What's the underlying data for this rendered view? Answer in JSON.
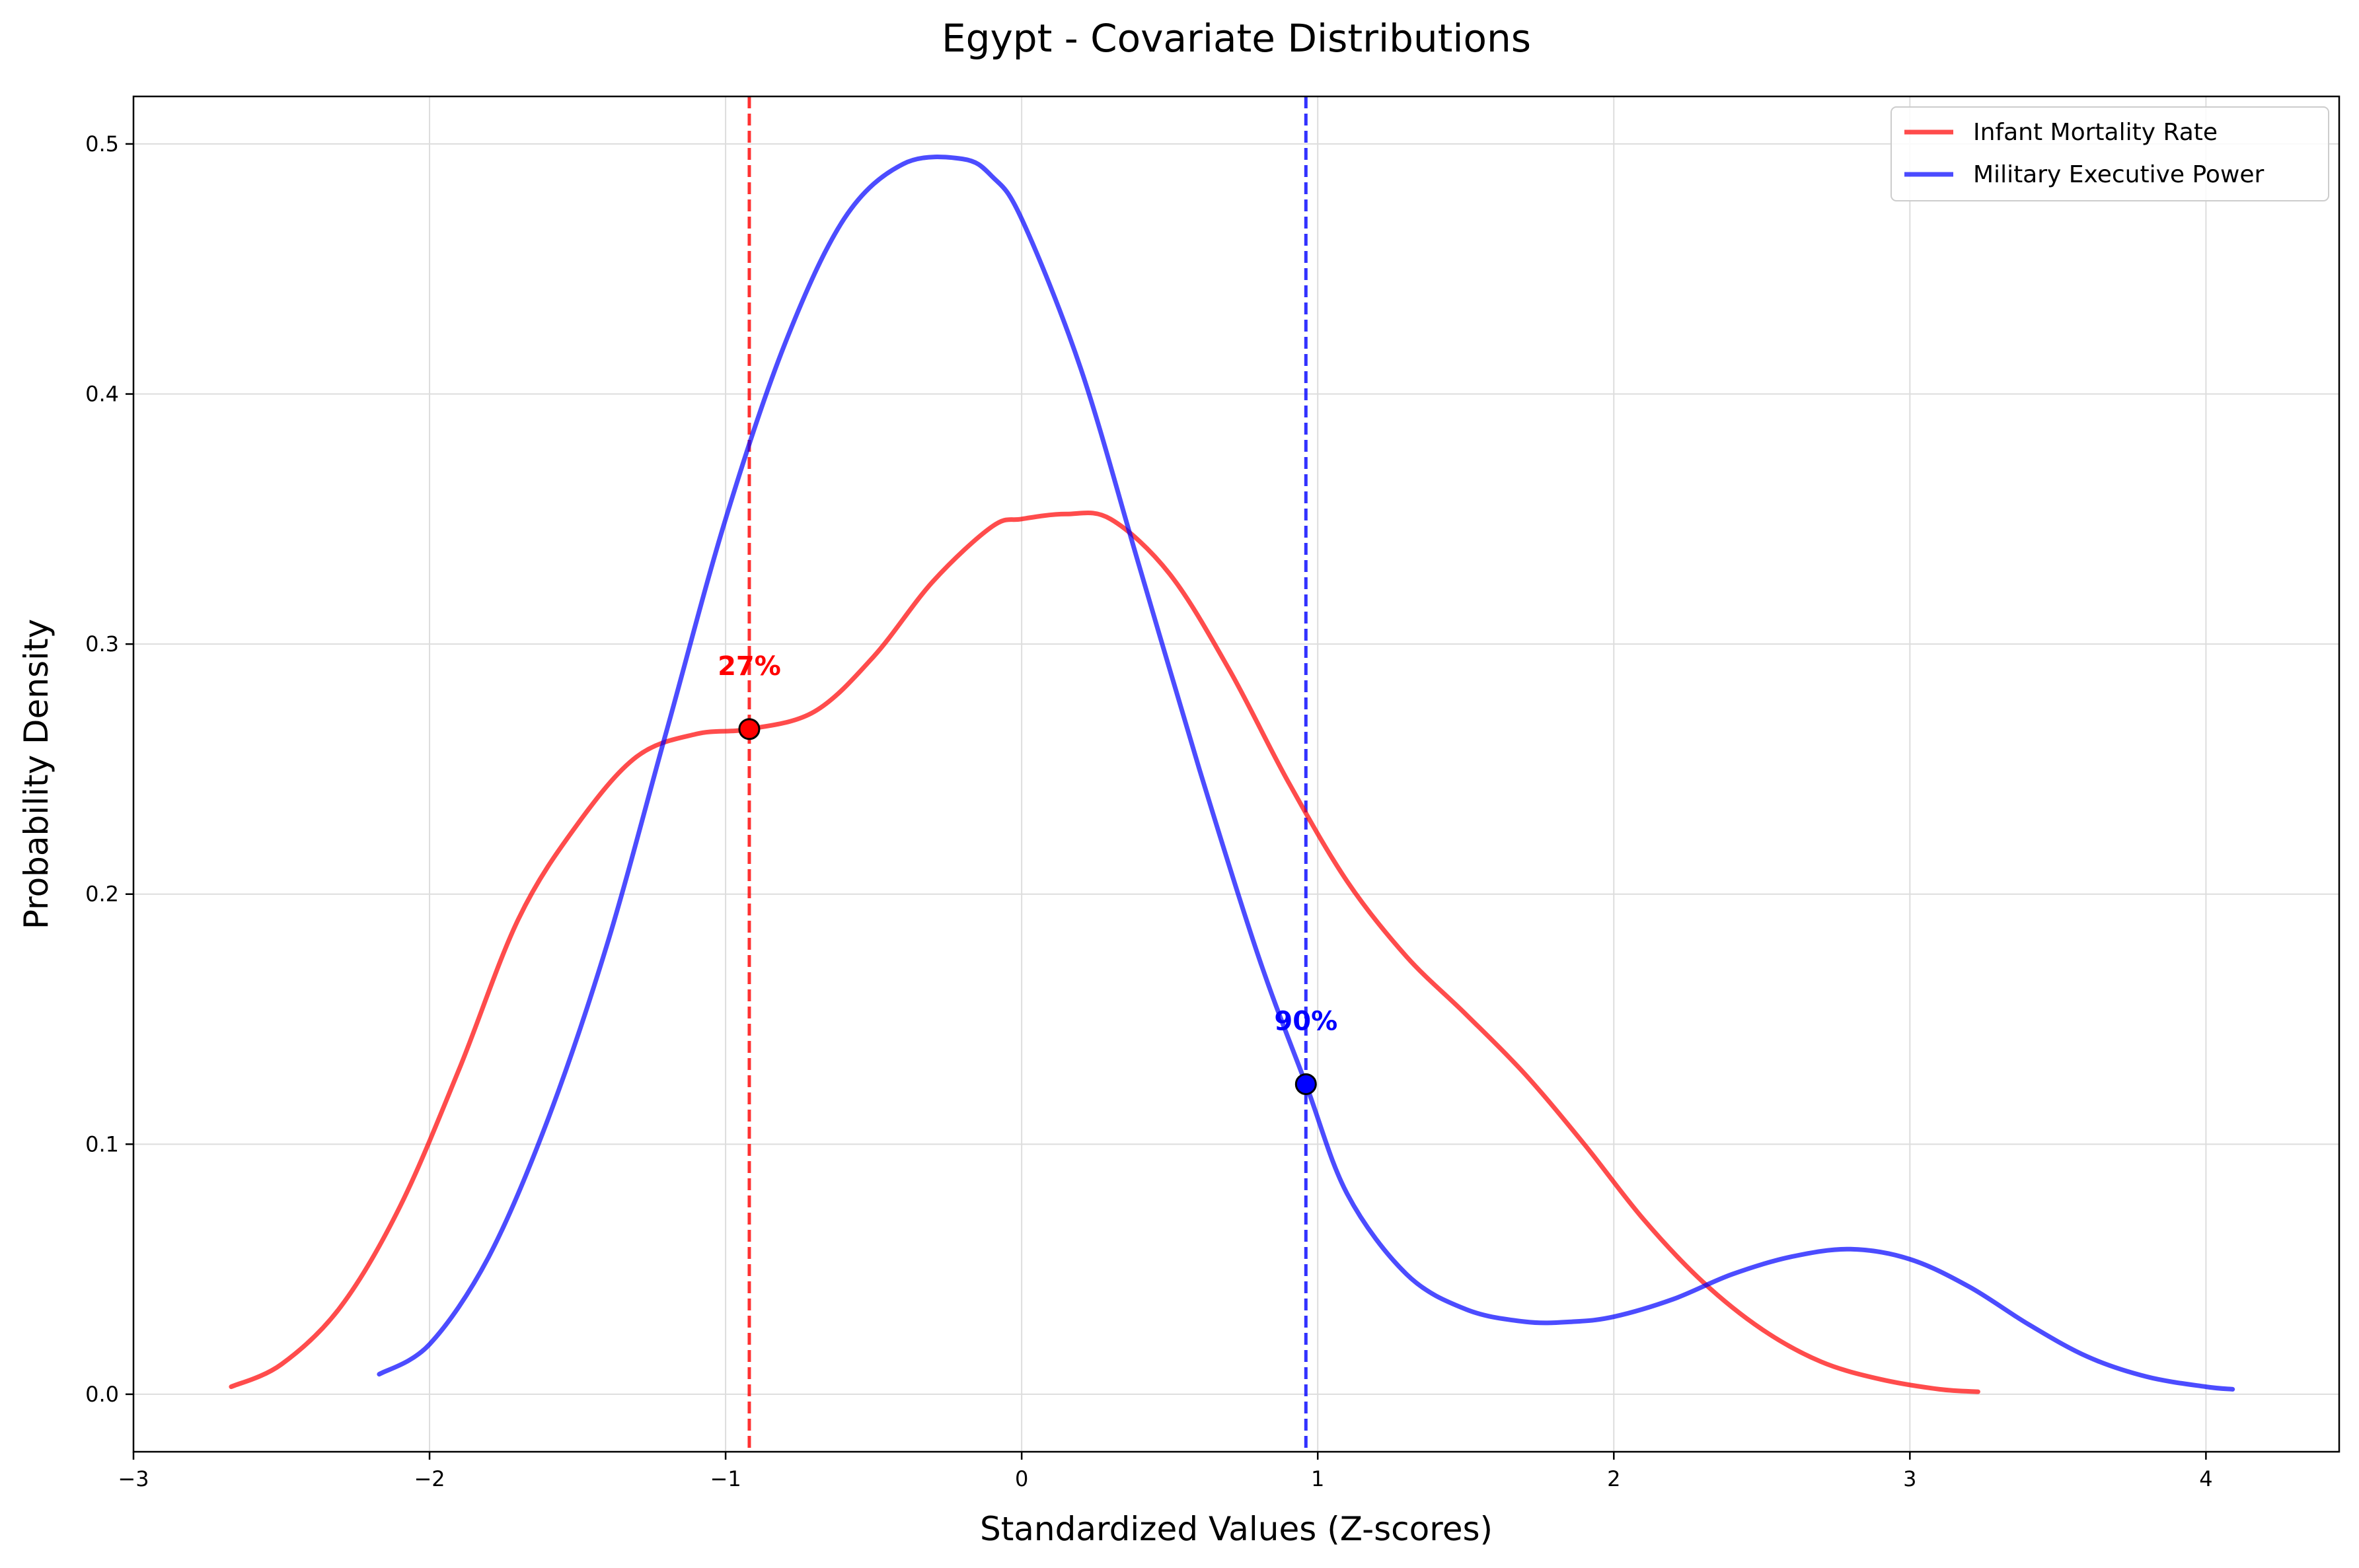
{
  "chart_data": {
    "type": "line",
    "title": "Egypt - Covariate Distributions",
    "xlabel": "Standardized Values (Z-scores)",
    "ylabel": "Probability Density",
    "xlim": [
      -3,
      4.45
    ],
    "ylim": [
      -0.023,
      0.519
    ],
    "xticks": [
      -3,
      -2,
      -1,
      0,
      1,
      2,
      3,
      4
    ],
    "xtick_labels": [
      "−3",
      "−2",
      "−1",
      "0",
      "1",
      "2",
      "3",
      "4"
    ],
    "yticks": [
      0.0,
      0.1,
      0.2,
      0.3,
      0.4,
      0.5
    ],
    "ytick_labels": [
      "0.0",
      "0.1",
      "0.2",
      "0.3",
      "0.4",
      "0.5"
    ],
    "grid": true,
    "legend_position": "top-right",
    "series": [
      {
        "name": "Infant Mortality Rate",
        "color": "#ff0000",
        "x": [
          -2.67,
          -2.5,
          -2.3,
          -2.1,
          -1.9,
          -1.7,
          -1.5,
          -1.3,
          -1.1,
          -0.92,
          -0.7,
          -0.5,
          -0.3,
          -0.1,
          0.0,
          0.15,
          0.3,
          0.5,
          0.7,
          0.9,
          1.1,
          1.3,
          1.5,
          1.7,
          1.9,
          2.1,
          2.3,
          2.5,
          2.7,
          2.9,
          3.1,
          3.23
        ],
        "y": [
          0.003,
          0.012,
          0.035,
          0.075,
          0.13,
          0.19,
          0.228,
          0.255,
          0.264,
          0.266,
          0.273,
          0.295,
          0.325,
          0.347,
          0.35,
          0.352,
          0.35,
          0.328,
          0.29,
          0.245,
          0.205,
          0.175,
          0.152,
          0.128,
          0.1,
          0.07,
          0.045,
          0.026,
          0.013,
          0.006,
          0.002,
          0.001
        ]
      },
      {
        "name": "Military Executive Power",
        "color": "#0000ff",
        "x": [
          -2.17,
          -2.0,
          -1.8,
          -1.6,
          -1.4,
          -1.2,
          -1.0,
          -0.8,
          -0.6,
          -0.4,
          -0.2,
          -0.1,
          0.0,
          0.2,
          0.4,
          0.6,
          0.8,
          0.96,
          1.1,
          1.3,
          1.5,
          1.7,
          1.86,
          2.0,
          2.2,
          2.4,
          2.6,
          2.8,
          3.0,
          3.2,
          3.4,
          3.6,
          3.8,
          4.0,
          4.09
        ],
        "y": [
          0.008,
          0.02,
          0.055,
          0.11,
          0.18,
          0.265,
          0.35,
          0.42,
          0.47,
          0.492,
          0.494,
          0.487,
          0.47,
          0.41,
          0.33,
          0.25,
          0.175,
          0.124,
          0.08,
          0.048,
          0.034,
          0.029,
          0.029,
          0.031,
          0.038,
          0.048,
          0.055,
          0.058,
          0.054,
          0.043,
          0.028,
          0.015,
          0.007,
          0.003,
          0.002
        ]
      }
    ],
    "vlines": [
      {
        "x": -0.92,
        "color": "#ff0000",
        "style": "dashed"
      },
      {
        "x": 0.96,
        "color": "#0000ff",
        "style": "dashed"
      }
    ],
    "markers": [
      {
        "x": -0.92,
        "y": 0.266,
        "label": "27%",
        "color": "#ff0000"
      },
      {
        "x": 0.96,
        "y": 0.124,
        "label": "90%",
        "color": "#0000ff"
      }
    ]
  }
}
